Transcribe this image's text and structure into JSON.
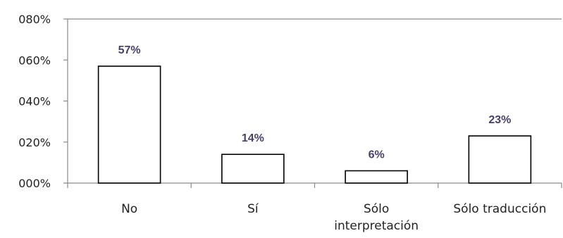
{
  "chart_data": {
    "type": "bar",
    "categories": [
      "No",
      "Sí",
      "Sólo interpretación",
      "Sólo traducción"
    ],
    "category_lines": [
      [
        "No"
      ],
      [
        "Sí"
      ],
      [
        "Sólo",
        "interpretación"
      ],
      [
        "Sólo traducción"
      ]
    ],
    "values": [
      57,
      14,
      6,
      23
    ],
    "data_labels": [
      "57%",
      "14%",
      "6%",
      "23%"
    ],
    "yticks": [
      "000%",
      "020%",
      "040%",
      "060%",
      "080%"
    ],
    "ytick_values": [
      0,
      20,
      40,
      60,
      80
    ],
    "ylim": [
      0,
      80
    ],
    "grid": false,
    "colors": {
      "bar_fill": "#ffffff",
      "bar_stroke": "#000000",
      "axis": "#8a8a8a",
      "data_label": "#4a3f6b"
    }
  }
}
